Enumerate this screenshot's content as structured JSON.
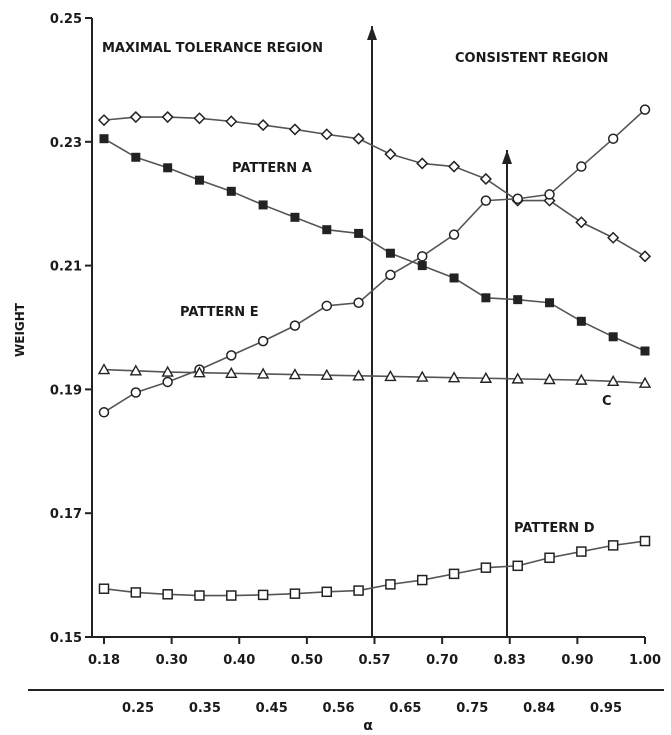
{
  "chart_data": {
    "type": "line",
    "ylabel": "WEIGHT",
    "xlabel": "α",
    "ylim": [
      0.15,
      0.25
    ],
    "yticks": [
      "0.15",
      "0.17",
      "0.19",
      "0.21",
      "0.23",
      "0.25"
    ],
    "xticks_top": [
      "0.18",
      "0.30",
      "0.40",
      "0.50",
      "0.57",
      "0.70",
      "0.83",
      "0.90",
      "1.00"
    ],
    "xticks_bottom": [
      "0.25",
      "0.35",
      "0.45",
      "0.56",
      "0.65",
      "0.75",
      "0.84",
      "0.95"
    ],
    "grid": false,
    "regions": [
      {
        "label": "MAXIMAL TOLERANCE REGION"
      },
      {
        "label": "CONSISTENT REGION"
      }
    ],
    "annotations": [
      "PATTERN A",
      "PATTERN E",
      "PATTERN D",
      "C"
    ],
    "series": [
      {
        "marker": "diamond",
        "values": [
          0.2335,
          0.234,
          0.234,
          0.2338,
          0.2333,
          0.2327,
          0.232,
          0.2312,
          0.2305,
          0.228,
          0.2265,
          0.226,
          0.224,
          0.2205,
          0.2205,
          0.217,
          0.2145,
          0.2115
        ]
      },
      {
        "marker": "filled-square",
        "values": [
          0.2305,
          0.2275,
          0.2258,
          0.2238,
          0.222,
          0.2198,
          0.2178,
          0.2158,
          0.2152,
          0.212,
          0.21,
          0.208,
          0.2048,
          0.2045,
          0.204,
          0.201,
          0.1985,
          0.1962
        ]
      },
      {
        "marker": "circle",
        "values": [
          0.1863,
          0.1895,
          0.1912,
          0.1932,
          0.1955,
          0.1978,
          0.2003,
          0.2035,
          0.204,
          0.2085,
          0.2115,
          0.215,
          0.2205,
          0.2208,
          0.2215,
          0.226,
          0.2305,
          0.2352
        ]
      },
      {
        "marker": "triangle",
        "values": [
          0.1932,
          0.193,
          0.1928,
          0.1927,
          0.1926,
          0.1925,
          0.1924,
          0.1923,
          0.1922,
          0.1921,
          0.192,
          0.1919,
          0.1918,
          0.1917,
          0.1916,
          0.1915,
          0.1913,
          0.191
        ]
      },
      {
        "marker": "square",
        "values": [
          0.1578,
          0.1572,
          0.1569,
          0.1567,
          0.1567,
          0.1568,
          0.157,
          0.1573,
          0.1575,
          0.1585,
          0.1592,
          0.1602,
          0.1612,
          0.1615,
          0.1628,
          0.1638,
          0.1648,
          0.1655
        ]
      }
    ]
  }
}
